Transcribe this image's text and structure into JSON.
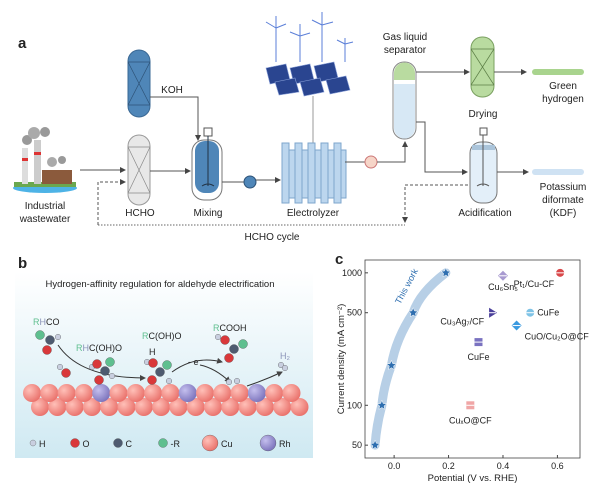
{
  "panel_a": {
    "label": "a",
    "koh": "KOH",
    "hcho": "HCHO",
    "industrial_1": "Industrial",
    "industrial_2": "wastewater",
    "mixing": "Mixing",
    "electrolyzer": "Electrolyzer",
    "separator_1": "Gas liquid",
    "separator_2": "separator",
    "drying": "Drying",
    "green_1": "Green",
    "green_2": "hydrogen",
    "acidification": "Acidification",
    "kdf_1": "Potassium",
    "kdf_2": "diformate",
    "kdf_3": "(KDF)",
    "cycle": "HCHO cycle"
  },
  "panel_b": {
    "label": "b",
    "title": "Hydrogen-affinity regulation for aldehyde electrification",
    "species": {
      "rhco_r": "R",
      "rhco_h": "H",
      "rhco_rest": "CO",
      "int1_r": "R",
      "int1_h": "H",
      "int1_rest": "C(OH)O",
      "int2_r": "R",
      "int2_rest": "C(OH)O",
      "int2_h": "H",
      "prod_r": "R",
      "prod_rest": "COOH",
      "h2": "H₂",
      "electron": "- e⁻"
    },
    "legend": [
      {
        "label": "H",
        "color": "#c9cfe0"
      },
      {
        "label": "O",
        "color": "#d9383a"
      },
      {
        "label": "C",
        "color": "#4e5b70"
      },
      {
        "label": "-R",
        "color": "#5fbf8f"
      },
      {
        "label": "Cu",
        "color": "#f08a80"
      },
      {
        "label": "Rh",
        "color": "#8d86c8"
      }
    ]
  },
  "chart_data": {
    "panel_label": "c",
    "type": "scatter",
    "xlabel": "Potential (V vs. RHE)",
    "ylabel": "Current density (mA cm⁻²)",
    "xlim": [
      -0.107,
      0.683
    ],
    "ylim": [
      40,
      1250
    ],
    "yscale": "log",
    "xticks": [
      0.0,
      0.2,
      0.4,
      0.6
    ],
    "xtick_labels": [
      "0.0",
      "0.2",
      "0.4",
      "0.6"
    ],
    "yticks": [
      50,
      100,
      500,
      1000
    ],
    "ytick_labels": [
      "50",
      "100",
      "500",
      "1000"
    ],
    "grid": false,
    "this_work": {
      "label": "This work",
      "color": "#2f6fb0",
      "x": [
        -0.07,
        -0.045,
        -0.01,
        0.07,
        0.19
      ],
      "y": [
        50,
        100,
        200,
        500,
        1000
      ]
    },
    "references": [
      {
        "label": "Cu₆Sn₅",
        "x": 0.4,
        "y": 950,
        "marker": "diamond",
        "color": "#a89ad0"
      },
      {
        "label": "Pt₁/Cu-CF",
        "x": 0.61,
        "y": 1000,
        "marker": "circle",
        "color": "#d9484a"
      },
      {
        "label": "Cu₃Ag₇/CF",
        "x": 0.36,
        "y": 500,
        "marker": "triangle",
        "color": "#4a3f9a"
      },
      {
        "label": "CuFe",
        "x": 0.5,
        "y": 500,
        "marker": "circle",
        "color": "#7fc3e6"
      },
      {
        "label": "CuO/Cu₂O@CF",
        "x": 0.45,
        "y": 400,
        "marker": "diamond",
        "color": "#3a9ae0"
      },
      {
        "label": "CuFe",
        "x": 0.31,
        "y": 300,
        "marker": "square",
        "color": "#7a72c0"
      },
      {
        "label": "CuₓO@CF",
        "x": 0.28,
        "y": 100,
        "marker": "square",
        "color": "#f0a6a6"
      }
    ]
  }
}
